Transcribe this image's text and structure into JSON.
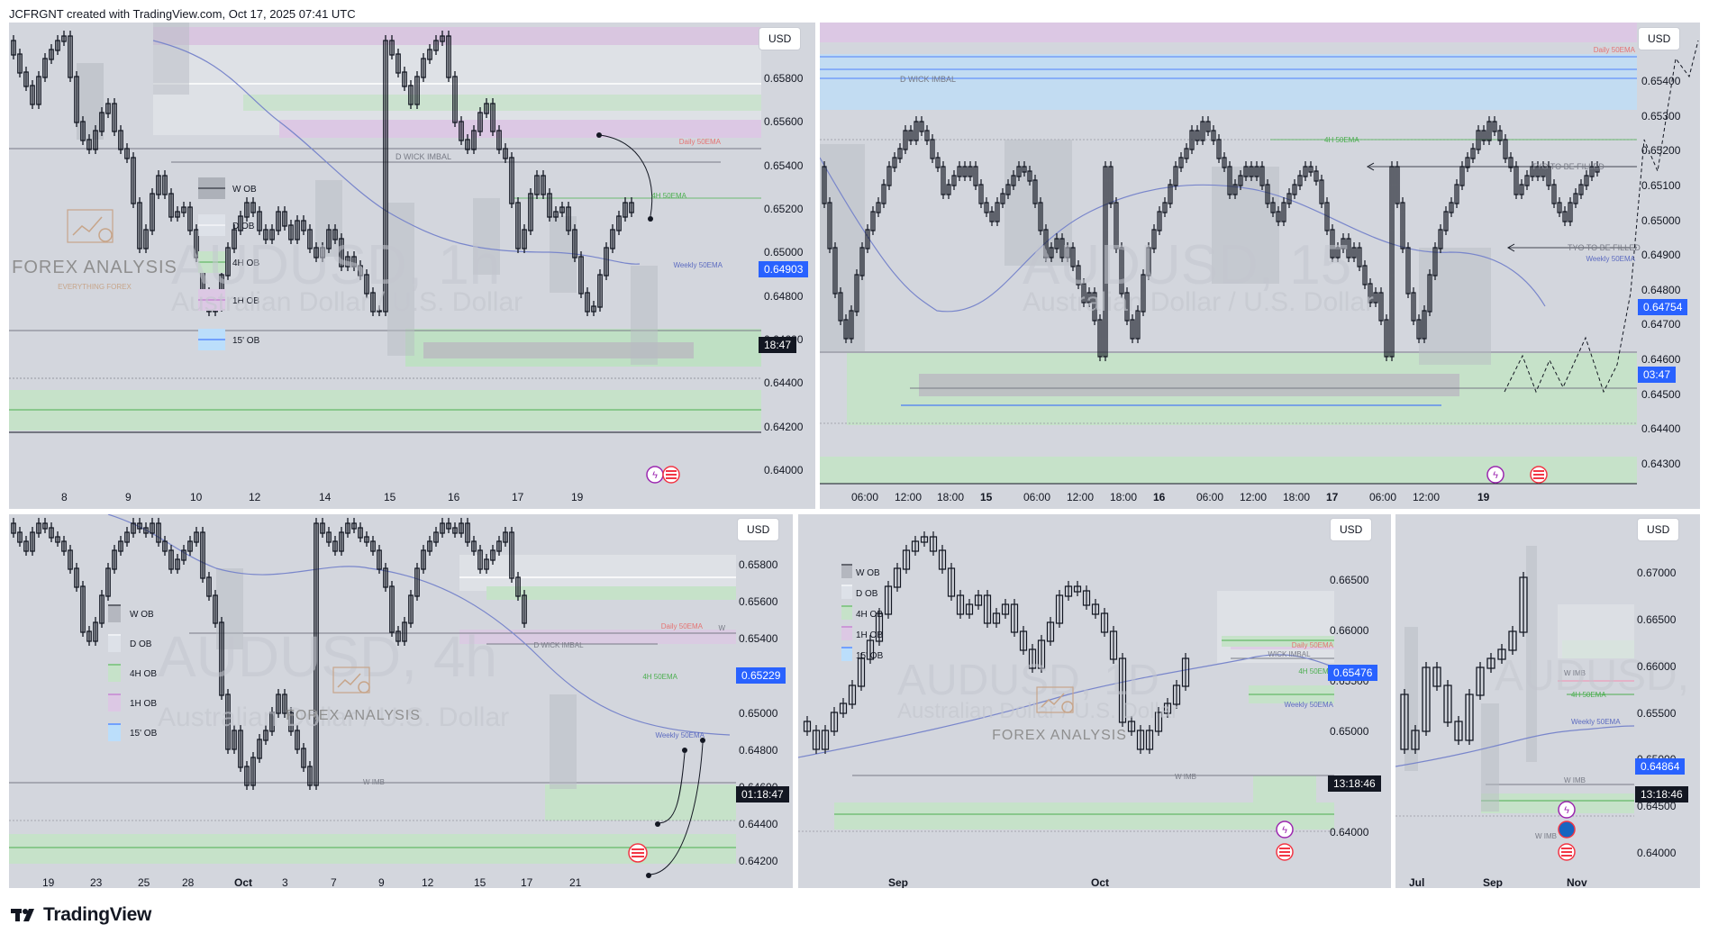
{
  "header": {
    "attribution": "JCFRGNT created with TradingView.com, Oct 17, 2025 07:41 UTC"
  },
  "footer": {
    "brand": "TradingView"
  },
  "colors": {
    "accent_blue": "#2962ff",
    "ob_green": "#a5d6a7",
    "ob_purple": "#e1bee7",
    "candle": "#131722"
  },
  "panels": {
    "p1": {
      "currency": "USD",
      "watermark_symbol": "AUDUSD, 1h",
      "watermark_name": "Australian Dollar / U.S. Dollar",
      "brand_name": "FOREX ANALYSIS",
      "brand_sub": "EVERYTHING FOREX",
      "prices": [
        "0.65800",
        "0.65600",
        "0.65400",
        "0.65200",
        "0.65000",
        "0.64800",
        "0.64600",
        "0.64400",
        "0.64200",
        "0.64000"
      ],
      "price_tag": "0.64903",
      "time_tag": "18:47",
      "dates": [
        "8",
        "9",
        "10",
        "12",
        "14",
        "15",
        "16",
        "17",
        "19"
      ],
      "legend": [
        "W OB",
        "D OB",
        "4H OB",
        "1H OB",
        "15' OB"
      ],
      "labels": {
        "wick": "D WICK IMBAL",
        "ema_daily": "Daily 50EMA",
        "ema_4h": "4H 50EMA",
        "ema_weekly": "Weekly 50EMA"
      }
    },
    "p2": {
      "currency": "USD",
      "watermark_symbol": "AUDUSD, 15",
      "watermark_name": "Australian Dollar / U.S. Dollar",
      "prices": [
        "0.65400",
        "0.65300",
        "0.65200",
        "0.65100",
        "0.65000",
        "0.64900",
        "0.64800",
        "0.64700",
        "0.64600",
        "0.64500",
        "0.64400",
        "0.64300"
      ],
      "price_tag": "0.64754",
      "time_tag": "03:47",
      "dates": [
        "06:00",
        "12:00",
        "18:00",
        "15",
        "06:00",
        "12:00",
        "18:00",
        "16",
        "06:00",
        "12:00",
        "18:00",
        "17",
        "06:00",
        "12:00",
        "19"
      ],
      "labels": {
        "wick": "D WICK IMBAL",
        "ema_daily": "Daily 50EMA",
        "ema_4h": "4H 50EMA",
        "tyo1": "TYO TO BE  FILLED",
        "tyo2": "TYO TO BE  FILLED",
        "ema_weekly": "Weekly 50EMA"
      }
    },
    "p3": {
      "currency": "USD",
      "watermark_symbol": "AUDUSD, 4h",
      "watermark_name": "Australian Dollar / U.S. Dollar",
      "brand_name": "FOREX ANALYSIS",
      "prices": [
        "0.65800",
        "0.65600",
        "0.65400",
        "0.65200",
        "0.65000",
        "0.64800",
        "0.64600",
        "0.64400",
        "0.64200"
      ],
      "price_tag": "0.65229",
      "time_tag": "01:18:47",
      "dates": [
        "19",
        "23",
        "25",
        "28",
        "Oct",
        "3",
        "7",
        "9",
        "12",
        "15",
        "17",
        "21"
      ],
      "legend": [
        "W OB",
        "D OB",
        "4H OB",
        "1H OB",
        "15' OB"
      ],
      "labels": {
        "wick": "D WICK IMBAL",
        "ema_daily": "Daily 50EMA",
        "ema_4h": "4H 50EMA",
        "ema_weekly": "Weekly 50EMA",
        "wimb": "W IMB",
        "w": "W"
      }
    },
    "p4": {
      "currency": "USD",
      "watermark_symbol": "AUDUSD, 1D",
      "watermark_name": "Australian Dollar / U.S. Dollar",
      "brand_name": "FOREX ANALYSIS",
      "prices": [
        "0.66500",
        "0.66000",
        "0.65500",
        "0.65000",
        "0.64500",
        "0.64000"
      ],
      "price_tag": "0.65476",
      "time_tag": "13:18:46",
      "dates": [
        "Sep",
        "Oct"
      ],
      "legend": [
        "W OB",
        "D OB",
        "4H OB",
        "1H OB",
        "15' OB"
      ],
      "labels": {
        "wick": "WICK IMBAL",
        "ema_daily": "Daily 50EMA",
        "ema_4h": "4H 50EMA",
        "ema_weekly": "Weekly 50EMA",
        "wimb": "W IMB"
      }
    },
    "p5": {
      "currency": "USD",
      "watermark_symbol": "AUDUSD, 1W",
      "prices": [
        "0.67000",
        "0.66500",
        "0.66000",
        "0.65500",
        "0.65000",
        "0.64500",
        "0.64000"
      ],
      "price_tag": "0.64864",
      "time_tag": "13:18:46",
      "dates": [
        "Jul",
        "Sep",
        "Nov"
      ],
      "labels": {
        "wimb1": "W IMB",
        "wimb2": "W IMB",
        "ema_4h": "4H 50EMA",
        "ema_weekly": "Weekly 50EMA",
        "wimb3": "W IMB"
      }
    }
  }
}
